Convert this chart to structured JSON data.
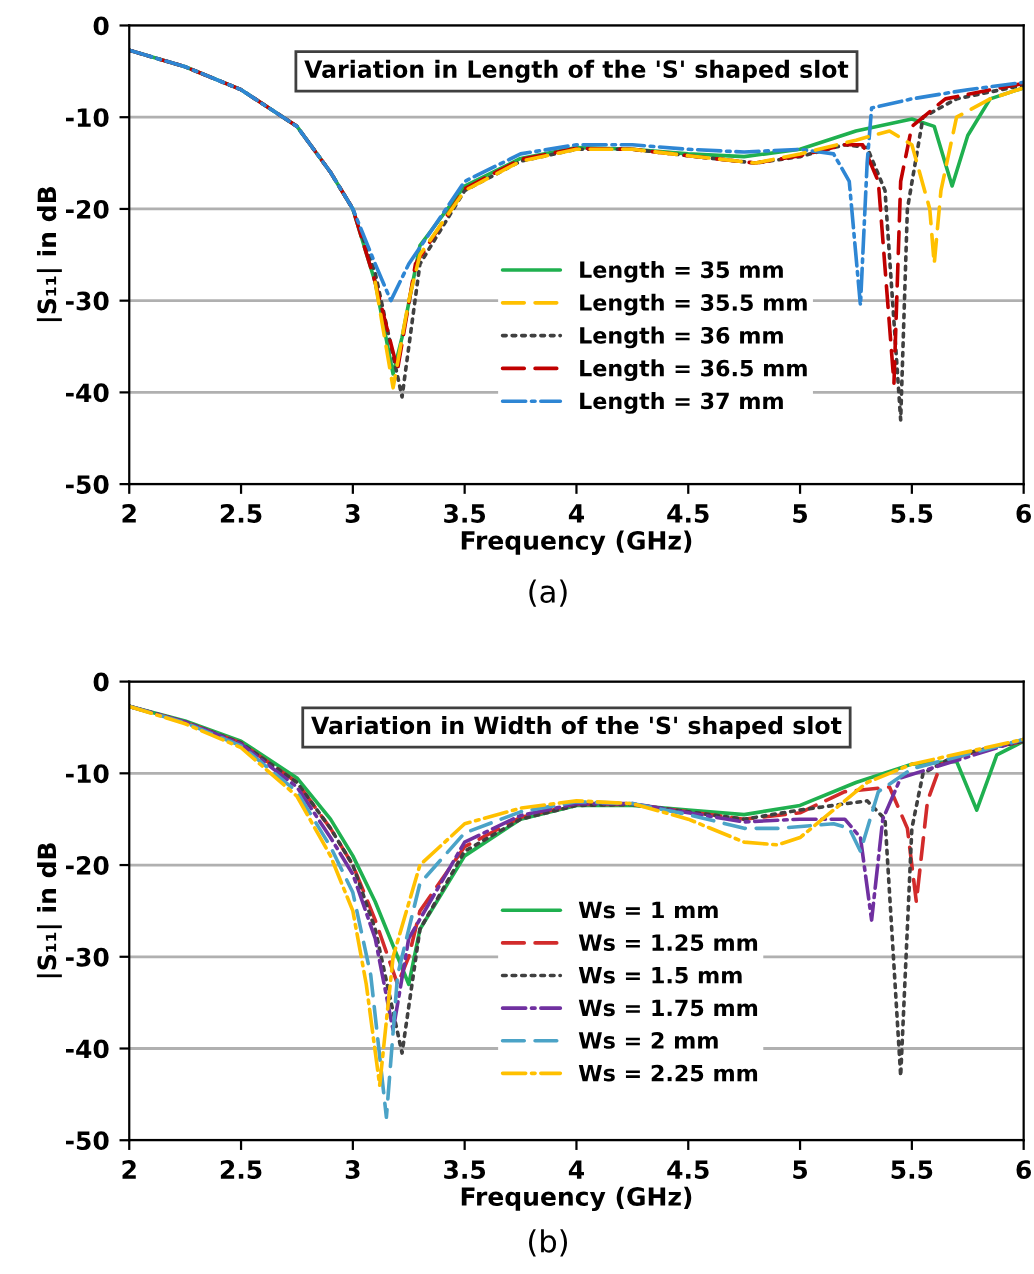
{
  "chart_data": [
    {
      "type": "line",
      "title": "Variation in Length of the 'S' shaped slot",
      "xlabel": "Frequency (GHz)",
      "ylabel": "|S₁₁| in dB",
      "annotations": [
        "(a)"
      ],
      "xlim": [
        2,
        6
      ],
      "xticks": [
        2,
        2.5,
        3,
        3.5,
        4,
        4.5,
        5,
        5.5,
        6
      ],
      "ylim": [
        -50,
        0
      ],
      "yticks": [
        -50,
        -40,
        -30,
        -20,
        -10,
        0
      ],
      "grid": "y",
      "legend": "right",
      "marker": "none",
      "series": [
        {
          "name": "Length = 35 mm",
          "color": "#1fb04f",
          "line_style": "solid",
          "x": [
            2,
            2.25,
            2.5,
            2.75,
            2.9,
            3.0,
            3.1,
            3.18,
            3.22,
            3.3,
            3.5,
            3.75,
            4,
            4.25,
            4.5,
            4.75,
            5,
            5.25,
            5.5,
            5.6,
            5.68,
            5.75,
            5.85,
            6
          ],
          "values": [
            -2.7,
            -4.5,
            -7,
            -11,
            -16,
            -20,
            -28,
            -38,
            -34,
            -24,
            -17.5,
            -14.5,
            -13.3,
            -13.5,
            -14,
            -14.3,
            -13.5,
            -11.5,
            -10.2,
            -11,
            -17.5,
            -12,
            -8,
            -6.8
          ]
        },
        {
          "name": "Length = 35.5 mm",
          "color": "#ffc000",
          "line_style": "dashed",
          "x": [
            3.1,
            3.18,
            3.25,
            3.3,
            3.5,
            3.75,
            4,
            4.25,
            4.5,
            4.8,
            5,
            5.25,
            5.4,
            5.5,
            5.58,
            5.6,
            5.63,
            5.7,
            5.85,
            6
          ],
          "values": [
            -28,
            -39.5,
            -30,
            -25,
            -18,
            -14.8,
            -13.5,
            -13.5,
            -14.2,
            -15,
            -14,
            -12.5,
            -11.5,
            -13,
            -20,
            -26,
            -18,
            -10,
            -8,
            -6.8
          ]
        },
        {
          "name": "Length = 36 mm",
          "color": "#404040",
          "line_style": "dotted",
          "x": [
            2,
            2.25,
            2.5,
            2.75,
            2.9,
            3.0,
            3.1,
            3.22,
            3.3,
            3.5,
            3.75,
            4,
            4.25,
            4.5,
            4.8,
            5,
            5.2,
            5.3,
            5.38,
            5.45,
            5.48,
            5.55,
            5.7,
            6
          ],
          "values": [
            -2.7,
            -4.5,
            -7,
            -11,
            -16,
            -20,
            -27,
            -40.5,
            -26,
            -18,
            -14.8,
            -13.5,
            -13.5,
            -14.2,
            -15,
            -14.3,
            -13,
            -13.3,
            -18,
            -43,
            -20,
            -10,
            -8,
            -6.5
          ]
        },
        {
          "name": "Length = 36.5 mm",
          "color": "#c00000",
          "line_style": "dashed",
          "x": [
            2,
            2.25,
            2.5,
            2.75,
            2.9,
            3.0,
            3.1,
            3.2,
            3.28,
            3.5,
            3.75,
            4,
            4.25,
            4.5,
            4.8,
            5,
            5.2,
            5.28,
            5.35,
            5.42,
            5.45,
            5.5,
            5.65,
            6
          ],
          "values": [
            -2.7,
            -4.5,
            -7,
            -11,
            -16,
            -20,
            -28,
            -37.5,
            -26,
            -17.8,
            -14.6,
            -13.4,
            -13.5,
            -14.2,
            -15,
            -14.2,
            -13,
            -13,
            -17,
            -39,
            -17,
            -11,
            -8,
            -6.3
          ]
        },
        {
          "name": "Length = 37 mm",
          "color": "#2e86d4",
          "line_style": "dashdot",
          "x": [
            2,
            2.25,
            2.5,
            2.75,
            2.9,
            3.0,
            3.1,
            3.17,
            3.25,
            3.5,
            3.75,
            4,
            4.25,
            4.5,
            4.75,
            5,
            5.15,
            5.22,
            5.27,
            5.3,
            5.32,
            5.5,
            5.75,
            6
          ],
          "values": [
            -2.7,
            -4.5,
            -7,
            -11,
            -16,
            -20,
            -26,
            -30,
            -26,
            -17,
            -14,
            -13,
            -13,
            -13.5,
            -13.8,
            -13.5,
            -14,
            -17,
            -30.5,
            -15,
            -9,
            -8,
            -7,
            -6.2
          ]
        }
      ]
    },
    {
      "type": "line",
      "title": "Variation in Width of the 'S' shaped slot",
      "xlabel": "Frequency (GHz)",
      "ylabel": "|S₁₁| in dB",
      "annotations": [
        "(b)"
      ],
      "xlim": [
        2,
        6
      ],
      "xticks": [
        2,
        2.5,
        3,
        3.5,
        4,
        4.5,
        5,
        5.5,
        6
      ],
      "ylim": [
        -50,
        0
      ],
      "yticks": [
        -50,
        -40,
        -30,
        -20,
        -10,
        0
      ],
      "grid": "y",
      "legend": "right",
      "marker": "none",
      "series": [
        {
          "name": "Ws = 1 mm",
          "color": "#1fb04f",
          "line_style": "solid",
          "x": [
            2,
            2.25,
            2.5,
            2.75,
            2.9,
            3.0,
            3.1,
            3.2,
            3.25,
            3.3,
            3.5,
            3.75,
            4,
            4.25,
            4.5,
            4.75,
            5,
            5.25,
            5.5,
            5.7,
            5.79,
            5.88,
            6
          ],
          "values": [
            -2.7,
            -4.3,
            -6.5,
            -10.5,
            -15,
            -19,
            -24,
            -30,
            -33,
            -27,
            -19,
            -15,
            -13.5,
            -13.5,
            -14,
            -14.5,
            -13.5,
            -11,
            -9,
            -8.7,
            -14,
            -8,
            -6.5
          ]
        },
        {
          "name": "Ws = 1.25 mm",
          "color": "#d22b2b",
          "line_style": "dashed",
          "x": [
            2,
            2.25,
            2.5,
            2.75,
            2.9,
            3.0,
            3.1,
            3.2,
            3.25,
            3.3,
            3.5,
            3.75,
            4,
            4.25,
            4.5,
            4.75,
            5,
            5.2,
            5.4,
            5.48,
            5.52,
            5.57,
            5.63,
            5.8,
            6
          ],
          "values": [
            -2.7,
            -4.4,
            -6.7,
            -11,
            -16,
            -20,
            -26,
            -33,
            -30,
            -25,
            -18,
            -14.8,
            -13.4,
            -13.4,
            -14.2,
            -15,
            -14.3,
            -12,
            -11.5,
            -16,
            -24,
            -13,
            -9,
            -7.5,
            -6.5
          ]
        },
        {
          "name": "Ws = 1.5 mm",
          "color": "#404040",
          "line_style": "dotted",
          "x": [
            2,
            2.25,
            2.5,
            2.75,
            2.9,
            3.0,
            3.1,
            3.22,
            3.3,
            3.5,
            3.75,
            4,
            4.25,
            4.5,
            4.75,
            5,
            5.3,
            5.38,
            5.45,
            5.5,
            5.55,
            5.7,
            6
          ],
          "values": [
            -2.7,
            -4.4,
            -6.7,
            -11,
            -16,
            -20,
            -27,
            -40.5,
            -27,
            -18.5,
            -15,
            -13.5,
            -13.4,
            -14.2,
            -15,
            -14,
            -13,
            -15,
            -43,
            -16,
            -10,
            -8,
            -6.5
          ]
        },
        {
          "name": "Ws = 1.75 mm",
          "color": "#7030a0",
          "line_style": "dashdot",
          "x": [
            2,
            2.25,
            2.5,
            2.75,
            2.9,
            3.0,
            3.1,
            3.18,
            3.25,
            3.5,
            3.75,
            4,
            4.25,
            4.5,
            4.75,
            5,
            5.2,
            5.27,
            5.32,
            5.37,
            5.45,
            6
          ],
          "values": [
            -2.7,
            -4.4,
            -6.8,
            -11.5,
            -17,
            -21,
            -28,
            -38,
            -28,
            -17.5,
            -14.6,
            -13.3,
            -13.3,
            -14.3,
            -15.3,
            -15,
            -15,
            -17,
            -26,
            -15,
            -10.5,
            -6.3
          ]
        },
        {
          "name": "Ws = 2 mm",
          "color": "#4ba3c7",
          "line_style": "dashed",
          "x": [
            2,
            2.25,
            2.5,
            2.75,
            2.9,
            3.0,
            3.08,
            3.15,
            3.2,
            3.3,
            3.5,
            3.75,
            4,
            4.25,
            4.5,
            4.75,
            4.9,
            5.15,
            5.22,
            5.27,
            5.35,
            5.5,
            6
          ],
          "values": [
            -2.7,
            -4.5,
            -7,
            -12,
            -18,
            -23,
            -32,
            -47.5,
            -32,
            -22,
            -16.5,
            -14.2,
            -13.1,
            -13.3,
            -14.5,
            -16,
            -16,
            -15.5,
            -16,
            -18.5,
            -12,
            -9.5,
            -6.3
          ]
        },
        {
          "name": "Ws = 2.25 mm",
          "color": "#ffc000",
          "line_style": "dashdot",
          "x": [
            2,
            2.25,
            2.5,
            2.75,
            2.9,
            3.0,
            3.06,
            3.12,
            3.18,
            3.3,
            3.5,
            3.75,
            4,
            4.25,
            4.5,
            4.75,
            4.9,
            5.0,
            5.15,
            5.3,
            5.5,
            6
          ],
          "values": [
            -2.7,
            -4.6,
            -7.2,
            -12.5,
            -19,
            -25,
            -33,
            -44,
            -30,
            -20,
            -15.5,
            -13.8,
            -13,
            -13.3,
            -15,
            -17.5,
            -17.8,
            -17,
            -14,
            -11,
            -9,
            -6.3
          ]
        }
      ]
    }
  ]
}
